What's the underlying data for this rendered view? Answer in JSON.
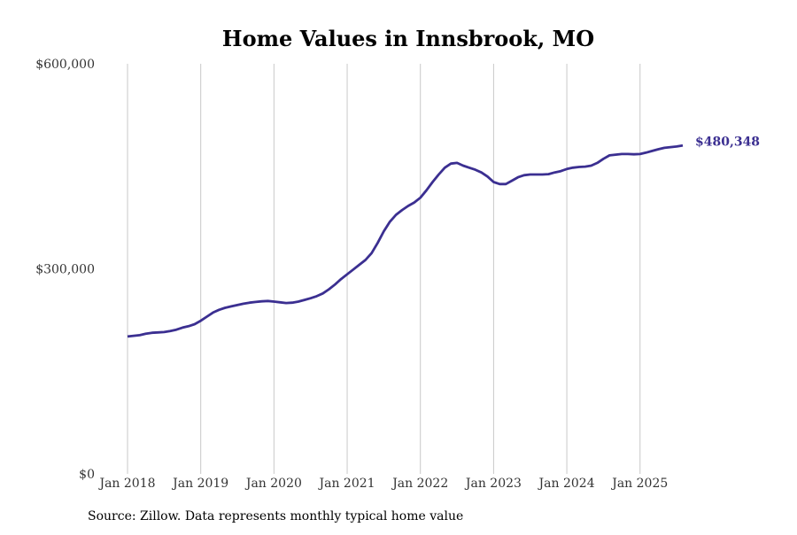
{
  "chart_data": {
    "type": "line",
    "title": "Home Values in Innsbrook, MO",
    "source": "Source: Zillow. Data represents monthly typical home value",
    "xlabel": "",
    "ylabel": "",
    "ylim": [
      0,
      600000
    ],
    "y_ticks": [
      {
        "value": 0,
        "label": "$0"
      },
      {
        "value": 300000,
        "label": "$300,000"
      },
      {
        "value": 600000,
        "label": "$600,000"
      }
    ],
    "x_ticks": [
      "Jan 2018",
      "Jan 2019",
      "Jan 2020",
      "Jan 2021",
      "Jan 2022",
      "Jan 2023",
      "Jan 2024",
      "Jan 2025"
    ],
    "grid": "vertical",
    "start": "2018-01",
    "frequency": "monthly",
    "series": [
      {
        "name": "Typical home value",
        "color": "#3b2f91",
        "values": [
          201000,
          202000,
          203000,
          205000,
          206500,
          207000,
          207500,
          209000,
          211000,
          214000,
          216000,
          219000,
          224000,
          230000,
          236000,
          240000,
          243000,
          245000,
          247000,
          249000,
          250500,
          251500,
          252500,
          253000,
          252000,
          251000,
          250000,
          250500,
          252000,
          254500,
          257000,
          260000,
          264000,
          270000,
          277000,
          285000,
          292000,
          299000,
          306000,
          313000,
          323000,
          338000,
          355000,
          369000,
          379000,
          386000,
          392000,
          397000,
          404000,
          415000,
          427000,
          438000,
          448000,
          454000,
          455000,
          451000,
          448000,
          445000,
          441000,
          435000,
          427000,
          424000,
          424000,
          429000,
          434000,
          437000,
          438000,
          438000,
          438000,
          438500,
          441000,
          443000,
          446000,
          448000,
          449000,
          449500,
          451000,
          455000,
          461000,
          466000,
          467000,
          468000,
          468000,
          467500,
          468000,
          470000,
          472500,
          475000,
          477000,
          478000,
          479000,
          480348
        ]
      }
    ],
    "end_label": "$480,348"
  }
}
